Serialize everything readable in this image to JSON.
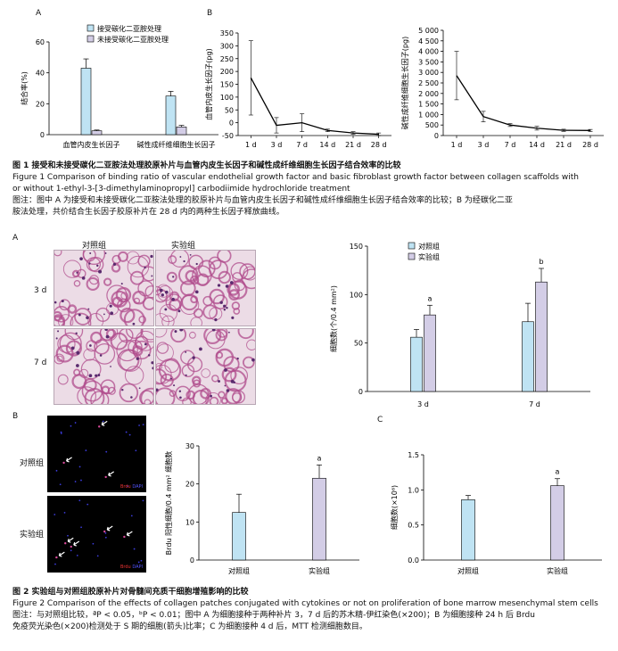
{
  "fig1": {
    "panelA": {
      "label": "A",
      "chart_data": {
        "type": "bar",
        "categories": [
          "血管内皮生长因子",
          "碱性成纤维细胞生长因子"
        ],
        "series": [
          {
            "name": "接受碳化二亚胺处理",
            "values": [
              43,
              25
            ],
            "errors": [
              6,
              3
            ],
            "color": "#bfe3f3"
          },
          {
            "name": "未接受碳化二亚胺处理",
            "values": [
              2.5,
              5
            ],
            "errors": [
              0.5,
              1
            ],
            "color": "#d3cde6"
          }
        ],
        "ylabel": "结合率(%)",
        "yticks": [
          "0",
          "20",
          "40",
          "60"
        ],
        "ylim": [
          0,
          60
        ]
      }
    },
    "panelB": {
      "label": "B",
      "left": {
        "chart_data": {
          "type": "line",
          "x": [
            "1 d",
            "3 d",
            "7 d",
            "14 d",
            "21 d",
            "28 d"
          ],
          "values": [
            175,
            -10,
            0,
            -30,
            -40,
            -45
          ],
          "errors": [
            145,
            30,
            35,
            5,
            5,
            5
          ],
          "ylabel": "血管内皮生长因子(pg)",
          "yticks": [
            "-50",
            "0",
            "50",
            "100",
            "150",
            "200",
            "250",
            "300",
            "350"
          ],
          "ylim": [
            -50,
            350
          ]
        }
      },
      "right": {
        "chart_data": {
          "type": "line",
          "x": [
            "1 d",
            "3 d",
            "7 d",
            "14 d",
            "21 d",
            "28 d"
          ],
          "values": [
            2850,
            900,
            500,
            350,
            250,
            240
          ],
          "errors": [
            1150,
            250,
            70,
            90,
            50,
            50
          ],
          "ylabel": "碱性成纤维细胞生长因子(pg)",
          "yticks": [
            "0",
            "500",
            "1 000",
            "1 500",
            "2 000",
            "2 500",
            "3 000",
            "3 500",
            "4 000",
            "4 500",
            "5 000"
          ],
          "ylim": [
            0,
            5000
          ]
        }
      }
    },
    "caption_title_zh": "图 1   接受和未接受碳化二亚胺法处理胶原补片与血管内皮生长因子和碱性成纤维细胞生长因子结合效率的比较",
    "caption_title_en1": "Figure 1    Comparison of binding ratio of vascular endothelial growth factor and basic fibroblast growth factor between collagen scaffolds with",
    "caption_title_en2": "or without 1-ethyl-3-[3-dimethylaminopropyl] carbodiimide hydrochloride treatment",
    "note1": "图注：图中 A 为接受和未接受碳化二亚胺法处理的胶原补片与血管内皮生长因子和碱性成纤维细胞生长因子结合效率的比较；B 为经碳化二亚",
    "note2": "胺法处理，共价结合生长因子胶原补片在 28 d 内的两种生长因子释放曲线。"
  },
  "fig2": {
    "panelA": {
      "label": "A",
      "col_control": "对照组",
      "col_exp": "实验组",
      "row1": "3 d",
      "row2": "7 d",
      "chart_data": {
        "type": "bar",
        "categories": [
          "3 d",
          "7 d"
        ],
        "series": [
          {
            "name": "对照组",
            "values": [
              56,
              72
            ],
            "errors": [
              8,
              19
            ],
            "color": "#bfe3f3"
          },
          {
            "name": "实验组",
            "values": [
              79,
              113
            ],
            "errors": [
              10,
              14
            ],
            "color": "#d3cde6"
          }
        ],
        "annotations": [
          "a",
          "b"
        ],
        "ylabel": "细胞数(个/0.4 mm²)",
        "yticks": [
          "0",
          "50",
          "100",
          "150"
        ],
        "ylim": [
          0,
          150
        ]
      }
    },
    "panelB": {
      "label": "B",
      "row1": "对照组",
      "row2": "实验组",
      "stain": "Brdu",
      "stain2": "DAPI",
      "chart_data": {
        "type": "bar",
        "categories": [
          "对照组",
          "实验组"
        ],
        "values": [
          12.5,
          21.5
        ],
        "errors": [
          4.8,
          3.5
        ],
        "colors": [
          "#bfe3f3",
          "#d3cde6"
        ],
        "annotations": [
          "",
          "a"
        ],
        "ylabel": "Brdu 阳性细胞/0.4 mm² 细胞数",
        "yticks": [
          "0",
          "10",
          "20",
          "30"
        ],
        "ylim": [
          0,
          30
        ]
      }
    },
    "panelC": {
      "label": "C",
      "chart_data": {
        "type": "bar",
        "categories": [
          "对照组",
          "实验组"
        ],
        "values": [
          0.86,
          1.06
        ],
        "errors": [
          0.06,
          0.1
        ],
        "colors": [
          "#bfe3f3",
          "#d3cde6"
        ],
        "annotations": [
          "",
          "a"
        ],
        "ylabel": "细胞数(×10⁶)",
        "yticks": [
          "0.0",
          "0.5",
          "1.0",
          "1.5"
        ],
        "ylim": [
          0,
          1.5
        ]
      }
    },
    "caption_title_zh": "图 2   实验组与对照组胶原补片对骨髓间充质干细胞增殖影响的比较",
    "caption_title_en": "Figure 2    Comparison of the effects of collagen patches conjugated with cytokines or not on proliferation of bone marrow mesenchymal stem cells",
    "note1": "图注：与对照组比较，ªP < 0.05，ᵇP < 0.01；图中 A 为细胞接种于两种补片 3，7 d 后的苏木精-伊红染色(×200)；B 为细胞接种 24 h 后 Brdu",
    "note2": "免疫荧光染色(×200)检测处于 S 期的细胞(箭头)比率；C 为细胞接种 4 d 后，MTT 检测细胞数目。"
  }
}
